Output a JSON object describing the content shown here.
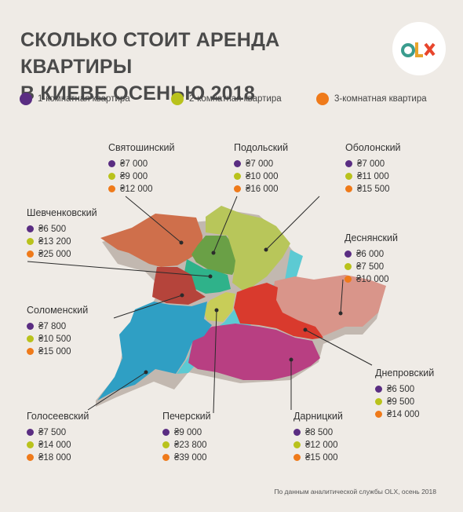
{
  "header": {
    "title_line1": "СКОЛЬКО СТОИТ АРЕНДА КВАРТИРЫ",
    "title_line2": "В КИЕВЕ ОСЕНЬЮ 2018",
    "logo_text": "OLX"
  },
  "legend": {
    "one_room": "1-комнатная квартира",
    "two_room": "2-комнатная квартира",
    "three_room": "3-комнатная квартира"
  },
  "colors": {
    "one_room": "#5a2d82",
    "two_room": "#b9c21c",
    "three_room": "#ef7a1a"
  },
  "districts": {
    "svyatoshynskyi": {
      "name": "Святошинский",
      "one": "₴7 000",
      "two": "₴9 000",
      "three": "₴12 000"
    },
    "podilskyi": {
      "name": "Подольский",
      "one": "₴7 000",
      "two": "₴10 000",
      "three": "₴16 000"
    },
    "obolonskyi": {
      "name": "Оболонский",
      "one": "₴7 000",
      "two": "₴11 000",
      "three": "₴15 500"
    },
    "shevchenkivskyi": {
      "name": "Шевченковский",
      "one": "₴6 500",
      "two": "₴13 200",
      "three": "₴25 000"
    },
    "desnianskyi": {
      "name": "Деснянский",
      "one": "₴6 000",
      "two": "₴7 500",
      "three": "₴10 000"
    },
    "solomianskyi": {
      "name": "Соломенский",
      "one": "₴7 800",
      "two": "₴10 500",
      "three": "₴15 000"
    },
    "dniprovskyi": {
      "name": "Днепровский",
      "one": "₴6 500",
      "two": "₴9 500",
      "three": "₴14 000"
    },
    "holosiivskyi": {
      "name": "Голосеевский",
      "one": "₴7 500",
      "two": "₴14 000",
      "three": "₴18 000"
    },
    "pecherskyi": {
      "name": "Печерский",
      "one": "₴9 000",
      "two": "₴23 800",
      "three": "₴39 000"
    },
    "darnytskyi": {
      "name": "Дарницкий",
      "one": "₴8 500",
      "two": "₴12 000",
      "three": "₴15 000"
    }
  },
  "footer": {
    "source": "По данным аналитической службы OLX, осень 2018"
  }
}
